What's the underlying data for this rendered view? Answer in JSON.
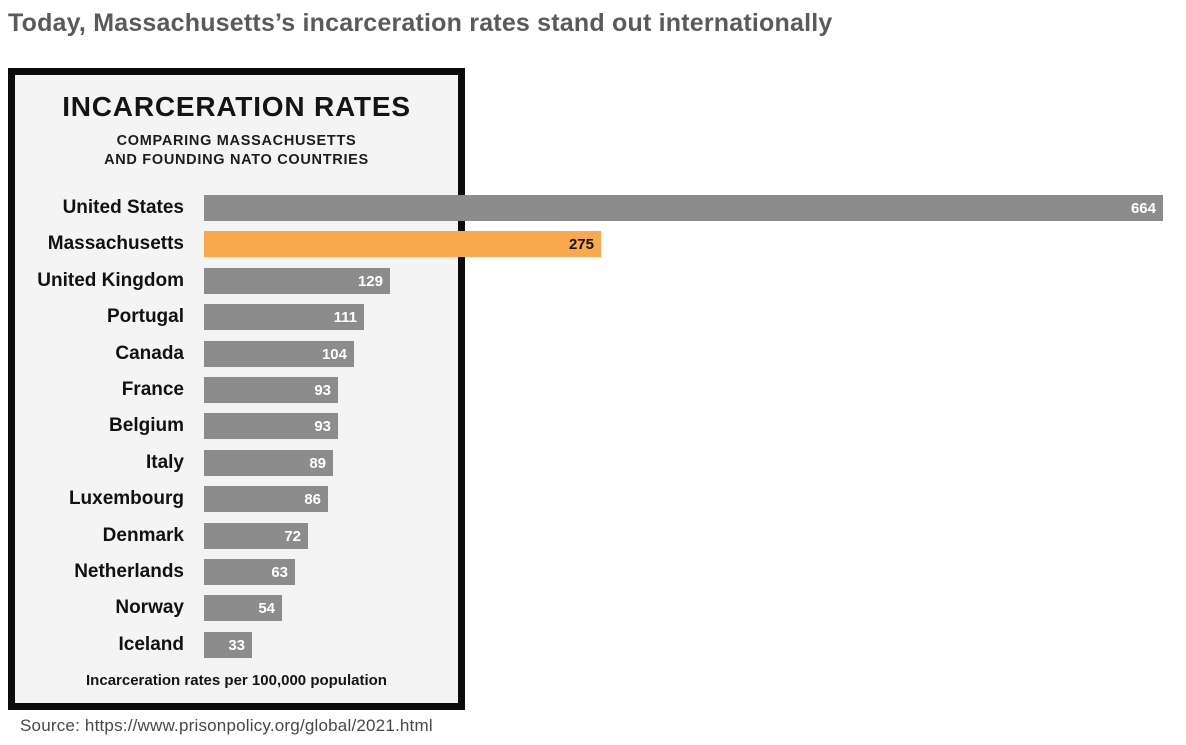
{
  "page": {
    "headline": "Today, Massachusetts’s incarceration rates stand out internationally",
    "source_line": "Source: https://www.prisonpolicy.org/global/2021.html"
  },
  "infographic": {
    "title": "INCARCERATION RATES",
    "subtitle_line1": "COMPARING MASSACHUSETTS",
    "subtitle_line2": "AND FOUNDING NATO COUNTRIES",
    "footnote": "Incarceration rates per 100,000 population"
  },
  "colors": {
    "bar_default": "#8C8C8C",
    "bar_highlight": "#FAA84C",
    "value_on_default": "#FFFFFF",
    "value_on_highlight": "#111111",
    "box_background": "#F4F4F4",
    "box_border": "#0B0B0B",
    "headline_text": "#5A5A5A"
  },
  "chart_data": {
    "type": "bar",
    "orientation": "horizontal",
    "title": "INCARCERATION RATES",
    "subtitle": "COMPARING MASSACHUSETTS AND FOUNDING NATO COUNTRIES",
    "unit_label": "Incarceration rates per 100,000 population",
    "categories": [
      "United States",
      "Massachusetts",
      "United Kingdom",
      "Portugal",
      "Canada",
      "France",
      "Belgium",
      "Italy",
      "Luxembourg",
      "Denmark",
      "Netherlands",
      "Norway",
      "Iceland"
    ],
    "values": [
      664,
      275,
      129,
      111,
      104,
      93,
      93,
      89,
      86,
      72,
      63,
      54,
      33
    ],
    "highlight_category": "Massachusetts",
    "xlim": [
      0,
      664
    ],
    "value_labels_shown": true,
    "legend": "none",
    "grid": false
  }
}
